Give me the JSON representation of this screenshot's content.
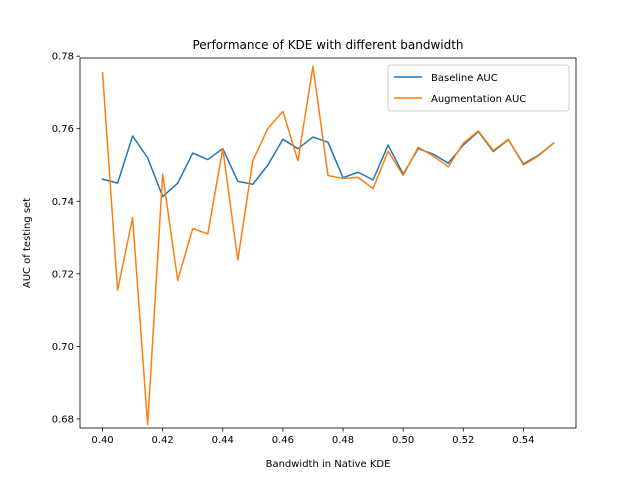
{
  "chart_data": {
    "type": "line",
    "title": "Performance of KDE with different bandwidth",
    "xlabel": "Bandwidth in Native KDE",
    "ylabel": "AUC of testing set",
    "xlim": [
      0.3925,
      0.5575
    ],
    "ylim": [
      0.6775,
      0.7795
    ],
    "xticks": [
      "0.40",
      "0.42",
      "0.44",
      "0.46",
      "0.48",
      "0.50",
      "0.52",
      "0.54"
    ],
    "xtick_values": [
      0.4,
      0.42,
      0.44,
      0.46,
      0.48,
      0.5,
      0.52,
      0.54
    ],
    "yticks": [
      "0.68",
      "0.70",
      "0.72",
      "0.74",
      "0.76",
      "0.78"
    ],
    "ytick_values": [
      0.68,
      0.7,
      0.72,
      0.74,
      0.76,
      0.78
    ],
    "grid": false,
    "legend_position": "top-right",
    "x": [
      0.4,
      0.405,
      0.41,
      0.415,
      0.42,
      0.425,
      0.43,
      0.435,
      0.44,
      0.445,
      0.45,
      0.455,
      0.46,
      0.465,
      0.47,
      0.475,
      0.48,
      0.485,
      0.49,
      0.495,
      0.5,
      0.505,
      0.51,
      0.515,
      0.52,
      0.525,
      0.53,
      0.535,
      0.54,
      0.545,
      0.55
    ],
    "series": [
      {
        "name": "Baseline AUC",
        "color": "#1f77b4",
        "values": [
          0.7461,
          0.745,
          0.758,
          0.752,
          0.7413,
          0.745,
          0.7533,
          0.7515,
          0.7545,
          0.7455,
          0.7447,
          0.75,
          0.7571,
          0.7545,
          0.7577,
          0.7563,
          0.7465,
          0.748,
          0.7459,
          0.7555,
          0.7475,
          0.7545,
          0.753,
          0.7505,
          0.7555,
          0.7592,
          0.7537,
          0.757,
          0.7503,
          0.7527,
          0.756
        ]
      },
      {
        "name": "Augmentation AUC",
        "color": "#ff7f0e",
        "values": [
          0.7755,
          0.7155,
          0.7355,
          0.6784,
          0.7475,
          0.7182,
          0.7325,
          0.731,
          0.7545,
          0.7238,
          0.7512,
          0.7601,
          0.7648,
          0.7512,
          0.7772,
          0.7471,
          0.7463,
          0.7466,
          0.7435,
          0.7538,
          0.7471,
          0.7549,
          0.7525,
          0.7495,
          0.756,
          0.7594,
          0.754,
          0.7571,
          0.75,
          0.7525,
          0.7561
        ]
      }
    ]
  }
}
